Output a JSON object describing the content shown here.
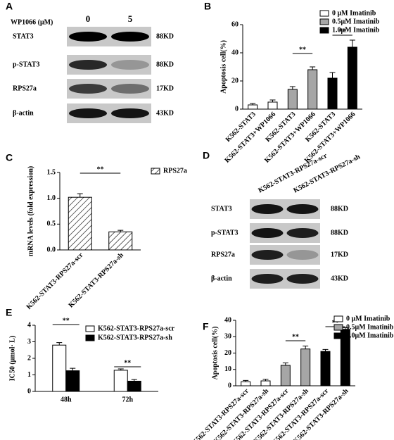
{
  "chart_data": [
    {
      "type": "bar",
      "panel_label": "B",
      "ylabel": "Apoptosis cell(%)",
      "categories": [
        "K562-STAT3",
        "K562-STAT3+WP1066",
        "K562-STAT3",
        "K562-STAT3+WP1066",
        "K562-STAT3",
        "K562-STAT3+WP1066"
      ],
      "series": [
        {
          "name": "0 μM Imatinib",
          "color": "#ffffff",
          "values": [
            3,
            5,
            null,
            null,
            null,
            null
          ],
          "errors": [
            1,
            1.5,
            null,
            null,
            null,
            null
          ]
        },
        {
          "name": "0.5μM Imatinib",
          "color": "#a6a6a6",
          "values": [
            null,
            null,
            14,
            28,
            null,
            null
          ],
          "errors": [
            null,
            null,
            2,
            2,
            null,
            null
          ]
        },
        {
          "name": "1.0μM Imatinib",
          "color": "#000000",
          "values": [
            null,
            null,
            null,
            null,
            22,
            44
          ],
          "errors": [
            null,
            null,
            null,
            null,
            4,
            5
          ]
        }
      ],
      "ylim": [
        0,
        60
      ],
      "yticks": [
        0,
        20,
        40,
        60
      ],
      "annotations": [
        "**",
        "**"
      ]
    },
    {
      "type": "bar",
      "panel_label": "C",
      "ylabel": "mRNA levels (fold expression)",
      "categories": [
        "K562-STAT3-RPS27a-scr",
        "K562-STAT3-RPS27a-sh"
      ],
      "series": [
        {
          "name": "RPS27a",
          "color": "#ffffff",
          "hatch": true,
          "values": [
            1.02,
            0.35
          ],
          "errors": [
            0.07,
            0.03
          ]
        }
      ],
      "ylim": [
        0,
        1.5
      ],
      "yticks": [
        {
          "value": 0,
          "label": "0.0"
        },
        {
          "value": 0.5,
          "label": "0.5"
        },
        {
          "value": 1,
          "label": "1.0"
        },
        {
          "value": 1.5,
          "label": "1.5"
        }
      ],
      "annotations": [
        "**"
      ]
    },
    {
      "type": "bar",
      "panel_label": "E",
      "ylabel": "IC50 (μmol· L)",
      "categories": [
        "48h",
        "72h"
      ],
      "series": [
        {
          "name": "K562-STAT3-RPS27a-scr",
          "color": "#ffffff",
          "values": [
            2.8,
            1.28
          ],
          "errors": [
            0.15,
            0.08
          ]
        },
        {
          "name": "K562-STAT3-RPS27a-sh",
          "color": "#000000",
          "values": [
            1.25,
            0.62
          ],
          "errors": [
            0.15,
            0.1
          ]
        }
      ],
      "ylim": [
        0,
        4
      ],
      "yticks": [
        0,
        1,
        2,
        3,
        4
      ],
      "annotations": [
        "**",
        "**"
      ]
    },
    {
      "type": "bar",
      "panel_label": "F",
      "ylabel": "Apoptosis cell(%)",
      "categories": [
        "K562-STAT3-RPS27a-scr",
        "K562-STAT3-RPS27a-sh",
        "K562-STAT3-RPS27a-scr",
        "K562-STAT3-RPS27a-sh",
        "K562-STAT3-RPS27a-scr",
        "K562-STAT3-RPS27a-sh"
      ],
      "series": [
        {
          "name": "0 μM Imatinib",
          "color": "#ffffff",
          "values": [
            2.5,
            3,
            null,
            null,
            null,
            null
          ],
          "errors": [
            0.8,
            1,
            null,
            null,
            null,
            null
          ]
        },
        {
          "name": "0.5μM Imatinib",
          "color": "#a6a6a6",
          "values": [
            null,
            null,
            12.5,
            22.5,
            null,
            null
          ],
          "errors": [
            null,
            null,
            1.5,
            1.8,
            null,
            null
          ]
        },
        {
          "name": "1.0μM Imatinib",
          "color": "#000000",
          "values": [
            null,
            null,
            null,
            null,
            21,
            34.5
          ],
          "errors": [
            null,
            null,
            null,
            null,
            1.2,
            1
          ]
        }
      ],
      "ylim": [
        0,
        40
      ],
      "yticks": [
        0,
        10,
        20,
        30,
        40
      ],
      "annotations": [
        "**",
        "**"
      ]
    }
  ],
  "blots": [
    {
      "panel_label": "A",
      "header": "WP1066 (μM)",
      "lanes": [
        "0",
        "5"
      ],
      "rows": [
        {
          "label": "STAT3",
          "size": "88KD"
        },
        {
          "label": "p-STAT3",
          "size": "88KD"
        },
        {
          "label": "RPS27a",
          "size": "17KD"
        },
        {
          "label": "β-actin",
          "size": "43KD"
        }
      ]
    },
    {
      "panel_label": "D",
      "lanes": [
        "K562-STAT3-RPS27a-scr",
        "K562-STAT3-RPS27a-sh"
      ],
      "rows": [
        {
          "label": "STAT3",
          "size": "88KD"
        },
        {
          "label": "p-STAT3",
          "size": "88KD"
        },
        {
          "label": "RPS27a",
          "size": "17KD"
        },
        {
          "label": "β-actin",
          "size": "43KD"
        }
      ]
    }
  ]
}
